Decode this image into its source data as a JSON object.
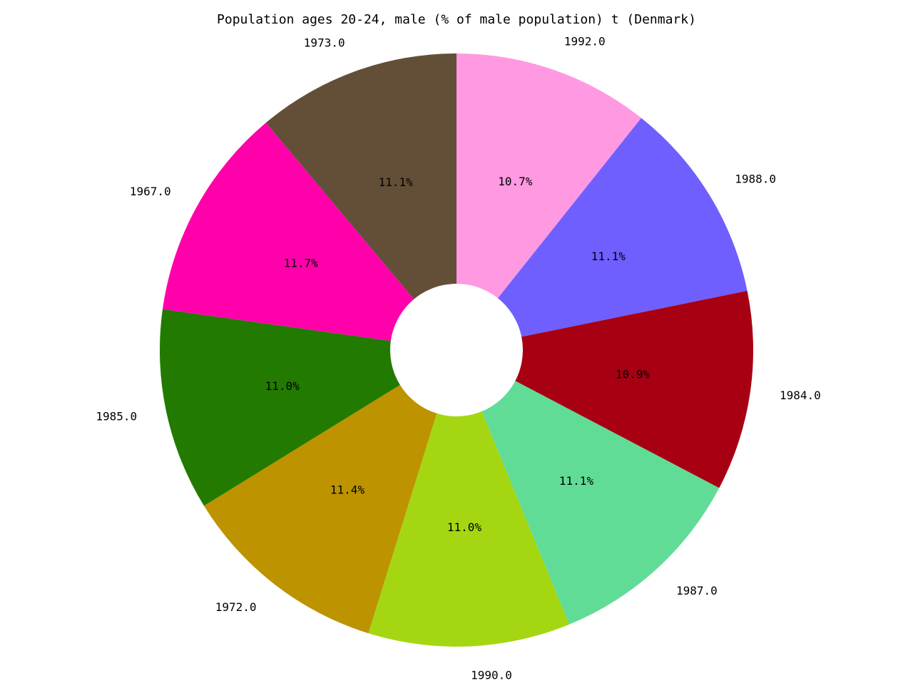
{
  "chart_data": {
    "type": "pie",
    "title": "Population ages 20-24, male (% of male population) t (Denmark)",
    "donut": true,
    "start_angle_deg": 90,
    "direction": "clockwise",
    "slices": [
      {
        "label": "1992.0",
        "value": 10.7,
        "pct_label": "10.7%",
        "color": "#ff99e2"
      },
      {
        "label": "1988.0",
        "value": 11.1,
        "pct_label": "11.1%",
        "color": "#6f5fff"
      },
      {
        "label": "1984.0",
        "value": 10.9,
        "pct_label": "10.9%",
        "color": "#a80013"
      },
      {
        "label": "1987.0",
        "value": 11.1,
        "pct_label": "11.1%",
        "color": "#61dc97"
      },
      {
        "label": "1990.0",
        "value": 11.0,
        "pct_label": "11.0%",
        "color": "#a4d712"
      },
      {
        "label": "1972.0",
        "value": 11.4,
        "pct_label": "11.4%",
        "color": "#bd9300"
      },
      {
        "label": "1985.0",
        "value": 11.0,
        "pct_label": "11.0%",
        "color": "#227a00"
      },
      {
        "label": "1967.0",
        "value": 11.7,
        "pct_label": "11.7%",
        "color": "#ff00aa"
      },
      {
        "label": "1973.0",
        "value": 11.1,
        "pct_label": "11.1%",
        "color": "#634f37"
      }
    ]
  }
}
